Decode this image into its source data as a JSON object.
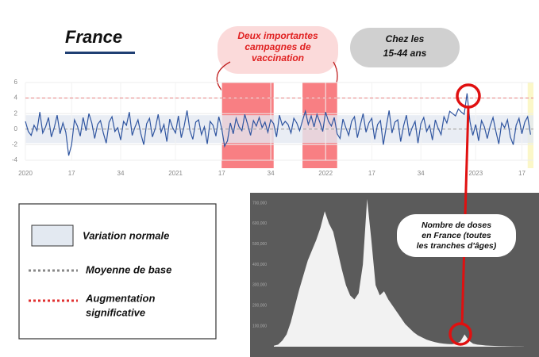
{
  "title": "France",
  "campaigns_label": [
    "Deux importantes",
    "campagnes de",
    "vaccination"
  ],
  "age_group_label": [
    "Chez les",
    "15-44 ans"
  ],
  "legend_items": [
    "Variation normale",
    "Moyenne de base",
    "Augmentation",
    "significative"
  ],
  "chart_data": [
    {
      "type": "line",
      "xlim": [
        0,
        176
      ],
      "ylim": [
        -4,
        6
      ],
      "yticks": [
        -4,
        -2,
        0,
        2,
        4,
        6
      ],
      "xticks": [
        {
          "value": 0,
          "label": "2020"
        },
        {
          "value": 16,
          "label": "17"
        },
        {
          "value": 33,
          "label": "34"
        },
        {
          "value": 52,
          "label": "2021"
        },
        {
          "value": 68,
          "label": "17"
        },
        {
          "value": 85,
          "label": "34"
        },
        {
          "value": 104,
          "label": "2022"
        },
        {
          "value": 120,
          "label": "17"
        },
        {
          "value": 137,
          "label": "34"
        },
        {
          "value": 156,
          "label": "2023"
        },
        {
          "value": 172,
          "label": "17"
        }
      ],
      "normal_band": [
        -1.8,
        1.8
      ],
      "normal_band_color": "#e3e9f1",
      "baseline": 0,
      "baseline_color": "#999999",
      "threshold": 4,
      "threshold_color": "#e88080",
      "highlights": [
        {
          "start": 68,
          "end": 86,
          "color": "#f87f83"
        },
        {
          "start": 96,
          "end": 108,
          "color": "#f87f83"
        },
        {
          "start": 174,
          "end": 176,
          "color": "#fbf7c8"
        }
      ],
      "grid": true,
      "series": [
        {
          "color": "#2f55a0",
          "values": [
            1.0,
            -0.3,
            -0.8,
            0.5,
            -0.2,
            2.2,
            -0.5,
            0.3,
            1.5,
            -1.0,
            0.2,
            1.8,
            -0.6,
            0.8,
            -0.4,
            -3.4,
            -2.0,
            1.2,
            0.4,
            -0.9,
            1.5,
            -0.2,
            2.0,
            0.8,
            -1.2,
            0.6,
            1.1,
            -0.5,
            -1.8,
            0.9,
            1.6,
            -0.3,
            0.2,
            -1.4,
            1.0,
            0.5,
            2.2,
            -0.8,
            0.3,
            1.2,
            -0.6,
            -2.0,
            0.7,
            1.4,
            -1.0,
            0.1,
            1.9,
            -0.4,
            0.6,
            -1.6,
            1.3,
            0.2,
            -0.5,
            1.7,
            -1.1,
            0.4,
            2.4,
            -0.2,
            -1.3,
            0.9,
            1.2,
            -0.7,
            0.3,
            -1.9,
            1.0,
            0.5,
            -0.9,
            1.6,
            0.1,
            -2.2,
            -1.5,
            0.8,
            -0.6,
            1.4,
            0.3,
            -0.2,
            1.9,
            0.6,
            -0.8,
            1.1,
            0.4,
            1.5,
            0.2,
            0.9,
            -0.4,
            1.2,
            0.7,
            -1.0,
            1.8,
            0.5,
            1.0,
            0.6,
            -0.5,
            1.4,
            0.8,
            -0.2,
            1.1,
            2.3,
            0.6,
            1.7,
            0.3,
            1.9,
            0.9,
            -0.3,
            2.2,
            1.0,
            0.4,
            1.5,
            -0.6,
            -1.2,
            1.3,
            0.2,
            -0.8,
            1.0,
            1.6,
            -1.1,
            0.5,
            2.0,
            -0.4,
            0.8,
            1.4,
            -1.3,
            0.6,
            1.1,
            -2.0,
            0.3,
            2.4,
            -0.5,
            0.9,
            1.2,
            -1.6,
            0.4,
            1.8,
            -0.9,
            0.2,
            1.0,
            -1.8,
            0.7,
            1.5,
            -0.3,
            0.5,
            -1.4,
            1.2,
            0.1,
            -0.7,
            1.6,
            0.8,
            2.3,
            2.0,
            1.7,
            2.6,
            2.2,
            1.9,
            4.6,
            1.0,
            -0.8,
            0.6,
            -1.5,
            1.1,
            0.3,
            -1.2,
            0.4,
            1.5,
            -0.3,
            -1.9,
            0.8,
            0.2,
            1.2,
            -1.0,
            -2.0,
            0.5,
            1.4,
            -0.6,
            0.9,
            1.6,
            -0.7
          ]
        }
      ]
    },
    {
      "type": "area",
      "title": [
        "Nombre de doses",
        "en France (toutes",
        "les tranches d'âges)"
      ],
      "ylim": [
        0,
        750000
      ],
      "yticks": [
        {
          "value": 100000,
          "label": "100,000"
        },
        {
          "value": 200000,
          "label": "200,000"
        },
        {
          "value": 300000,
          "label": "300,000"
        },
        {
          "value": 400000,
          "label": "400,000"
        },
        {
          "value": 500000,
          "label": "500,000"
        },
        {
          "value": 600000,
          "label": "600,000"
        },
        {
          "value": 700000,
          "label": "700,000"
        }
      ],
      "background": "#5b5b5b",
      "color": "#f2f2f2",
      "series": [
        {
          "values": [
            5000,
            10000,
            30000,
            60000,
            120000,
            200000,
            280000,
            350000,
            420000,
            470000,
            520000,
            580000,
            660000,
            600000,
            560000,
            470000,
            380000,
            300000,
            250000,
            230000,
            260000,
            400000,
            720000,
            520000,
            300000,
            250000,
            270000,
            230000,
            200000,
            170000,
            140000,
            110000,
            90000,
            70000,
            55000,
            45000,
            35000,
            28000,
            22000,
            18000,
            15000,
            13000,
            12000,
            15000,
            25000,
            60000,
            30000,
            15000,
            10000,
            8000,
            6000,
            5000,
            4000,
            3000,
            2500,
            2000,
            1500,
            1000,
            800,
            500
          ]
        }
      ]
    }
  ]
}
